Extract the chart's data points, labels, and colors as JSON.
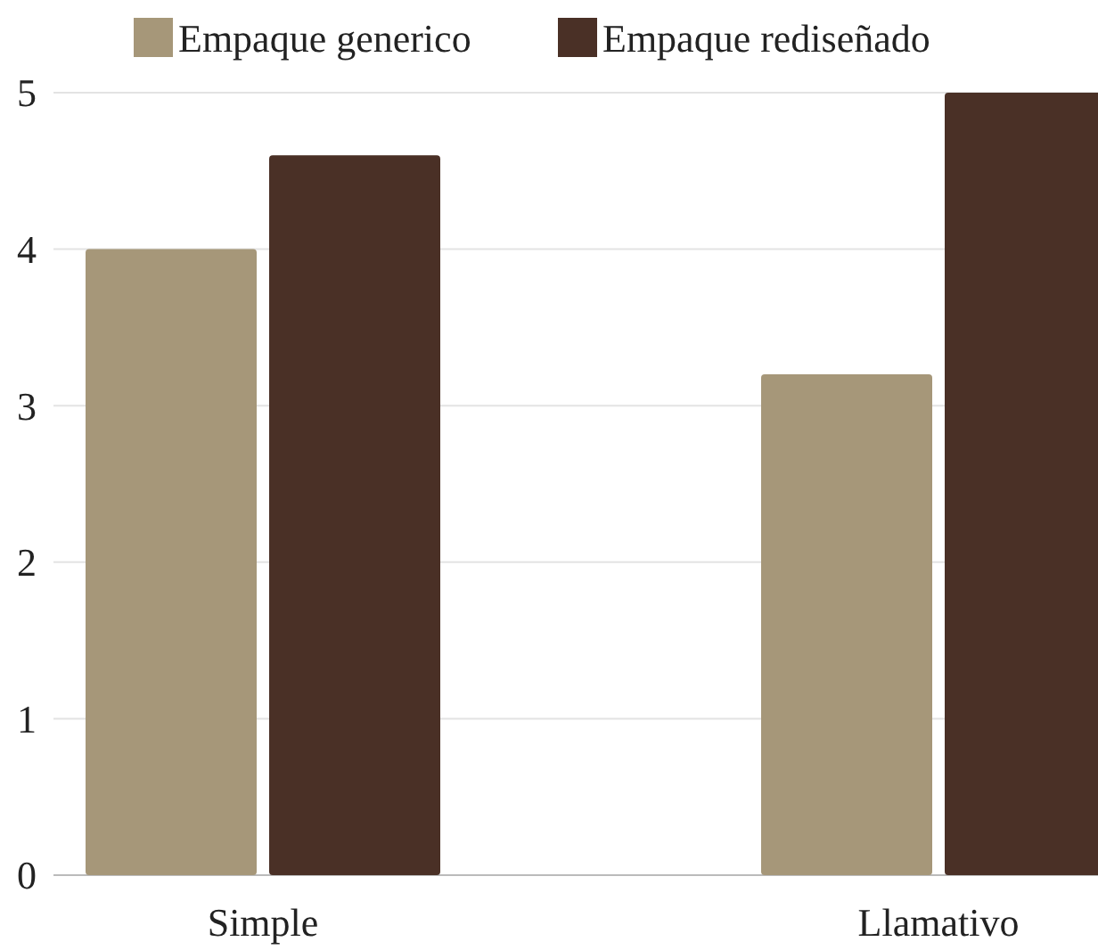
{
  "chart_data": {
    "type": "bar",
    "categories": [
      "Simple",
      "Llamativo"
    ],
    "series": [
      {
        "name": "Empaque generico",
        "color": "#a69779",
        "values": [
          4.0,
          3.2
        ]
      },
      {
        "name": "Empaque rediseñado",
        "color": "#4a3026",
        "values": [
          4.6,
          5.0
        ]
      }
    ],
    "ylim": [
      0,
      5
    ],
    "yticks": [
      0,
      1,
      2,
      3,
      4,
      5
    ],
    "grid": "y",
    "legend": "top"
  }
}
